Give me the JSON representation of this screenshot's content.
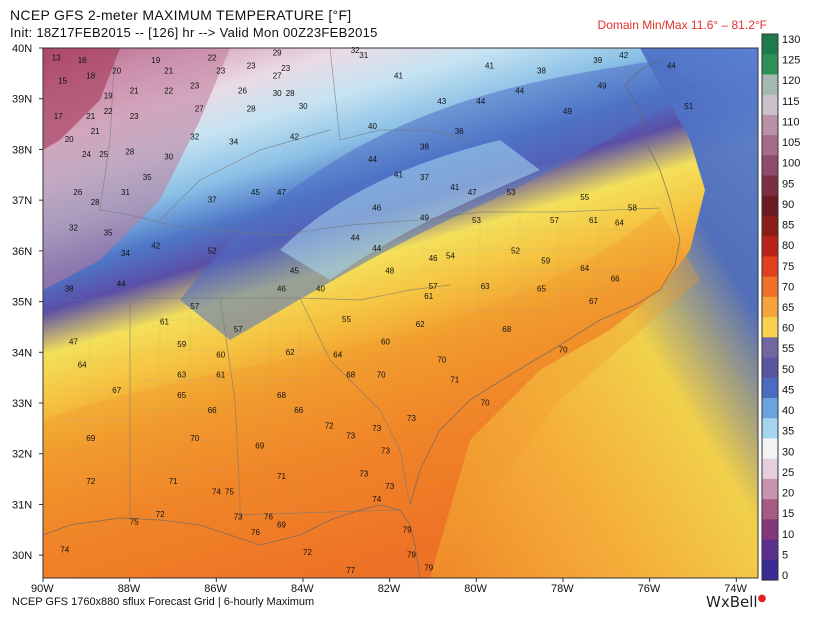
{
  "header": {
    "title": "NCEP GFS 2-meter MAXIMUM TEMPERATURE [°F]",
    "init_line": "Init: 18Z17FEB2015 -- [126] hr --> Valid Mon 00Z23FEB2015",
    "domain_minmax": "Domain Min/Max  11.6°  –  81.2°F"
  },
  "footer": {
    "source": "NCEP GFS 1760x880 sflux Forecast Grid | 6-hourly Maximum",
    "brand": "WxBell"
  },
  "map_data": {
    "type": "temperature-map",
    "lat_labels": [
      "40N",
      "39N",
      "38N",
      "37N",
      "36N",
      "35N",
      "34N",
      "33N",
      "32N",
      "31N",
      "30N"
    ],
    "lon_labels": [
      "90W",
      "88W",
      "86W",
      "84W",
      "82W",
      "80W",
      "78W",
      "76W",
      "74W"
    ],
    "colorbar": {
      "ticks": [
        "130",
        "125",
        "120",
        "115",
        "110",
        "105",
        "100",
        "95",
        "90",
        "85",
        "80",
        "75",
        "70",
        "65",
        "60",
        "55",
        "50",
        "45",
        "40",
        "35",
        "30",
        "25",
        "20",
        "15",
        "10",
        "5",
        "0"
      ],
      "colors": [
        "#1e7a4a",
        "#2f8f56",
        "#a4b9b0",
        "#c9c0c9",
        "#ba8fa8",
        "#a56c8a",
        "#8e4b6b",
        "#7a2f43",
        "#6b1a22",
        "#8a1d18",
        "#b8241b",
        "#e0401e",
        "#f07228",
        "#f4a43a",
        "#f7d24e",
        "#7268a0",
        "#5a55a0",
        "#4a6cc2",
        "#6aa4dd",
        "#a6d6ee",
        "#f3f3f6",
        "#e6cfdc",
        "#c995ae",
        "#a65b82",
        "#82387a",
        "#5c2f8a",
        "#3a2a94"
      ]
    },
    "temperature_labels": [
      {
        "v": "13",
        "lon": -89.8,
        "lat": 39.75
      },
      {
        "v": "16",
        "lon": -89.2,
        "lat": 39.7
      },
      {
        "v": "15",
        "lon": -89.65,
        "lat": 39.3
      },
      {
        "v": "18",
        "lon": -89.0,
        "lat": 39.4
      },
      {
        "v": "20",
        "lon": -88.4,
        "lat": 39.5
      },
      {
        "v": "19",
        "lon": -87.5,
        "lat": 39.7
      },
      {
        "v": "21",
        "lon": -87.2,
        "lat": 39.5
      },
      {
        "v": "22",
        "lon": -86.2,
        "lat": 39.75
      },
      {
        "v": "23",
        "lon": -86.0,
        "lat": 39.5
      },
      {
        "v": "23",
        "lon": -85.3,
        "lat": 39.6
      },
      {
        "v": "29",
        "lon": -84.7,
        "lat": 39.85
      },
      {
        "v": "27",
        "lon": -84.7,
        "lat": 39.4
      },
      {
        "v": "32",
        "lon": -82.9,
        "lat": 39.9
      },
      {
        "v": "31",
        "lon": -82.7,
        "lat": 39.8
      },
      {
        "v": "23",
        "lon": -84.5,
        "lat": 39.55
      },
      {
        "v": "19",
        "lon": -88.6,
        "lat": 39.0
      },
      {
        "v": "21",
        "lon": -88.0,
        "lat": 39.1
      },
      {
        "v": "22",
        "lon": -87.2,
        "lat": 39.1
      },
      {
        "v": "23",
        "lon": -86.6,
        "lat": 39.2
      },
      {
        "v": "26",
        "lon": -85.5,
        "lat": 39.1
      },
      {
        "v": "28",
        "lon": -84.4,
        "lat": 39.05
      },
      {
        "v": "30",
        "lon": -84.7,
        "lat": 39.05
      },
      {
        "v": "17",
        "lon": -89.75,
        "lat": 38.6
      },
      {
        "v": "21",
        "lon": -89.0,
        "lat": 38.6
      },
      {
        "v": "22",
        "lon": -88.6,
        "lat": 38.7
      },
      {
        "v": "23",
        "lon": -88.0,
        "lat": 38.6
      },
      {
        "v": "27",
        "lon": -86.5,
        "lat": 38.75
      },
      {
        "v": "28",
        "lon": -85.3,
        "lat": 38.75
      },
      {
        "v": "30",
        "lon": -84.1,
        "lat": 38.8
      },
      {
        "v": "20",
        "lon": -89.5,
        "lat": 38.15
      },
      {
        "v": "21",
        "lon": -88.9,
        "lat": 38.3
      },
      {
        "v": "24",
        "lon": -89.1,
        "lat": 37.85
      },
      {
        "v": "25",
        "lon": -88.7,
        "lat": 37.85
      },
      {
        "v": "28",
        "lon": -88.1,
        "lat": 37.9
      },
      {
        "v": "30",
        "lon": -87.2,
        "lat": 37.8
      },
      {
        "v": "32",
        "lon": -86.6,
        "lat": 38.2
      },
      {
        "v": "34",
        "lon": -85.7,
        "lat": 38.1
      },
      {
        "v": "42",
        "lon": -84.3,
        "lat": 38.2
      },
      {
        "v": "40",
        "lon": -82.5,
        "lat": 38.4
      },
      {
        "v": "26",
        "lon": -89.3,
        "lat": 37.1
      },
      {
        "v": "28",
        "lon": -88.9,
        "lat": 36.9
      },
      {
        "v": "31",
        "lon": -88.2,
        "lat": 37.1
      },
      {
        "v": "35",
        "lon": -87.7,
        "lat": 37.4
      },
      {
        "v": "37",
        "lon": -86.2,
        "lat": 36.95
      },
      {
        "v": "45",
        "lon": -85.2,
        "lat": 37.1
      },
      {
        "v": "47",
        "lon": -84.6,
        "lat": 37.1
      },
      {
        "v": "32",
        "lon": -89.4,
        "lat": 36.4
      },
      {
        "v": "35",
        "lon": -88.6,
        "lat": 36.3
      },
      {
        "v": "34",
        "lon": -88.2,
        "lat": 35.9
      },
      {
        "v": "42",
        "lon": -87.5,
        "lat": 36.05
      },
      {
        "v": "52",
        "lon": -86.2,
        "lat": 35.95
      },
      {
        "v": "38",
        "lon": -89.5,
        "lat": 35.2
      },
      {
        "v": "44",
        "lon": -88.3,
        "lat": 35.3
      },
      {
        "v": "45",
        "lon": -84.3,
        "lat": 35.55
      },
      {
        "v": "46",
        "lon": -84.6,
        "lat": 35.2
      },
      {
        "v": "40",
        "lon": -83.7,
        "lat": 35.2
      },
      {
        "v": "41",
        "lon": -81.9,
        "lat": 39.4
      },
      {
        "v": "43",
        "lon": -80.9,
        "lat": 38.9
      },
      {
        "v": "44",
        "lon": -80.0,
        "lat": 38.9
      },
      {
        "v": "41",
        "lon": -79.8,
        "lat": 39.6
      },
      {
        "v": "44",
        "lon": -79.1,
        "lat": 39.1
      },
      {
        "v": "38",
        "lon": -78.6,
        "lat": 39.5
      },
      {
        "v": "39",
        "lon": -77.3,
        "lat": 39.7
      },
      {
        "v": "42",
        "lon": -76.7,
        "lat": 39.8
      },
      {
        "v": "49",
        "lon": -77.2,
        "lat": 39.2
      },
      {
        "v": "44",
        "lon": -75.6,
        "lat": 39.6
      },
      {
        "v": "51",
        "lon": -75.2,
        "lat": 38.8
      },
      {
        "v": "49",
        "lon": -78.0,
        "lat": 38.7
      },
      {
        "v": "38",
        "lon": -81.3,
        "lat": 38.0
      },
      {
        "v": "36",
        "lon": -80.5,
        "lat": 38.3
      },
      {
        "v": "44",
        "lon": -82.5,
        "lat": 37.75
      },
      {
        "v": "41",
        "lon": -81.9,
        "lat": 37.45
      },
      {
        "v": "37",
        "lon": -81.3,
        "lat": 37.4
      },
      {
        "v": "41",
        "lon": -80.6,
        "lat": 37.2
      },
      {
        "v": "47",
        "lon": -80.2,
        "lat": 37.1
      },
      {
        "v": "53",
        "lon": -79.3,
        "lat": 37.1
      },
      {
        "v": "55",
        "lon": -77.6,
        "lat": 37.0
      },
      {
        "v": "58",
        "lon": -76.5,
        "lat": 36.8
      },
      {
        "v": "46",
        "lon": -82.4,
        "lat": 36.8
      },
      {
        "v": "49",
        "lon": -81.3,
        "lat": 36.6
      },
      {
        "v": "53",
        "lon": -80.1,
        "lat": 36.55
      },
      {
        "v": "57",
        "lon": -78.3,
        "lat": 36.55
      },
      {
        "v": "61",
        "lon": -77.4,
        "lat": 36.55
      },
      {
        "v": "64",
        "lon": -76.8,
        "lat": 36.5
      },
      {
        "v": "44",
        "lon": -82.9,
        "lat": 36.2
      },
      {
        "v": "44",
        "lon": -82.4,
        "lat": 36.0
      },
      {
        "v": "46",
        "lon": -81.1,
        "lat": 35.8
      },
      {
        "v": "54",
        "lon": -80.7,
        "lat": 35.85
      },
      {
        "v": "52",
        "lon": -79.2,
        "lat": 35.95
      },
      {
        "v": "59",
        "lon": -78.5,
        "lat": 35.75
      },
      {
        "v": "64",
        "lon": -77.6,
        "lat": 35.6
      },
      {
        "v": "66",
        "lon": -76.9,
        "lat": 35.4
      },
      {
        "v": "48",
        "lon": -82.1,
        "lat": 35.55
      },
      {
        "v": "57",
        "lon": -81.1,
        "lat": 35.25
      },
      {
        "v": "61",
        "lon": -81.2,
        "lat": 35.05
      },
      {
        "v": "63",
        "lon": -79.9,
        "lat": 35.25
      },
      {
        "v": "65",
        "lon": -78.6,
        "lat": 35.2
      },
      {
        "v": "67",
        "lon": -77.4,
        "lat": 34.95
      },
      {
        "v": "57",
        "lon": -86.6,
        "lat": 34.85
      },
      {
        "v": "61",
        "lon": -87.3,
        "lat": 34.55
      },
      {
        "v": "57",
        "lon": -85.6,
        "lat": 34.4
      },
      {
        "v": "59",
        "lon": -86.9,
        "lat": 34.1
      },
      {
        "v": "55",
        "lon": -83.1,
        "lat": 34.6
      },
      {
        "v": "60",
        "lon": -82.2,
        "lat": 34.15
      },
      {
        "v": "62",
        "lon": -81.4,
        "lat": 34.5
      },
      {
        "v": "68",
        "lon": -79.4,
        "lat": 34.4
      },
      {
        "v": "70",
        "lon": -78.1,
        "lat": 34.0
      },
      {
        "v": "47",
        "lon": -89.4,
        "lat": 34.15
      },
      {
        "v": "60",
        "lon": -86.0,
        "lat": 33.9
      },
      {
        "v": "62",
        "lon": -84.4,
        "lat": 33.95
      },
      {
        "v": "64",
        "lon": -83.3,
        "lat": 33.9
      },
      {
        "v": "70",
        "lon": -80.9,
        "lat": 33.8
      },
      {
        "v": "64",
        "lon": -89.2,
        "lat": 33.7
      },
      {
        "v": "63",
        "lon": -86.9,
        "lat": 33.5
      },
      {
        "v": "61",
        "lon": -86.0,
        "lat": 33.5
      },
      {
        "v": "68",
        "lon": -83.0,
        "lat": 33.5
      },
      {
        "v": "70",
        "lon": -82.3,
        "lat": 33.5
      },
      {
        "v": "71",
        "lon": -80.6,
        "lat": 33.4
      },
      {
        "v": "67",
        "lon": -88.4,
        "lat": 33.2
      },
      {
        "v": "65",
        "lon": -86.9,
        "lat": 33.1
      },
      {
        "v": "68",
        "lon": -84.6,
        "lat": 33.1
      },
      {
        "v": "70",
        "lon": -79.9,
        "lat": 32.95
      },
      {
        "v": "66",
        "lon": -86.2,
        "lat": 32.8
      },
      {
        "v": "66",
        "lon": -84.2,
        "lat": 32.8
      },
      {
        "v": "72",
        "lon": -83.5,
        "lat": 32.5
      },
      {
        "v": "73",
        "lon": -82.4,
        "lat": 32.45
      },
      {
        "v": "73",
        "lon": -81.6,
        "lat": 32.65
      },
      {
        "v": "69",
        "lon": -89.0,
        "lat": 32.25
      },
      {
        "v": "70",
        "lon": -86.6,
        "lat": 32.25
      },
      {
        "v": "69",
        "lon": -85.1,
        "lat": 32.1
      },
      {
        "v": "73",
        "lon": -83.0,
        "lat": 32.3
      },
      {
        "v": "73",
        "lon": -82.2,
        "lat": 32.0
      },
      {
        "v": "72",
        "lon": -89.0,
        "lat": 31.4
      },
      {
        "v": "71",
        "lon": -87.1,
        "lat": 31.4
      },
      {
        "v": "71",
        "lon": -84.6,
        "lat": 31.5
      },
      {
        "v": "73",
        "lon": -82.7,
        "lat": 31.55
      },
      {
        "v": "73",
        "lon": -82.1,
        "lat": 31.3
      },
      {
        "v": "74",
        "lon": -86.1,
        "lat": 31.2
      },
      {
        "v": "75",
        "lon": -85.8,
        "lat": 31.2
      },
      {
        "v": "72",
        "lon": -87.4,
        "lat": 30.75
      },
      {
        "v": "73",
        "lon": -85.6,
        "lat": 30.7
      },
      {
        "v": "76",
        "lon": -84.9,
        "lat": 30.7
      },
      {
        "v": "74",
        "lon": -82.4,
        "lat": 31.05
      },
      {
        "v": "75",
        "lon": -88.0,
        "lat": 30.6
      },
      {
        "v": "76",
        "lon": -85.2,
        "lat": 30.4
      },
      {
        "v": "72",
        "lon": -84.0,
        "lat": 30.0
      },
      {
        "v": "79",
        "lon": -81.7,
        "lat": 30.45
      },
      {
        "v": "79",
        "lon": -81.2,
        "lat": 29.7
      },
      {
        "v": "77",
        "lon": -83.0,
        "lat": 29.65
      },
      {
        "v": "79",
        "lon": -81.6,
        "lat": 29.95
      },
      {
        "v": "74",
        "lon": -89.6,
        "lat": 30.05
      },
      {
        "v": "69",
        "lon": -84.6,
        "lat": 30.55
      }
    ]
  }
}
